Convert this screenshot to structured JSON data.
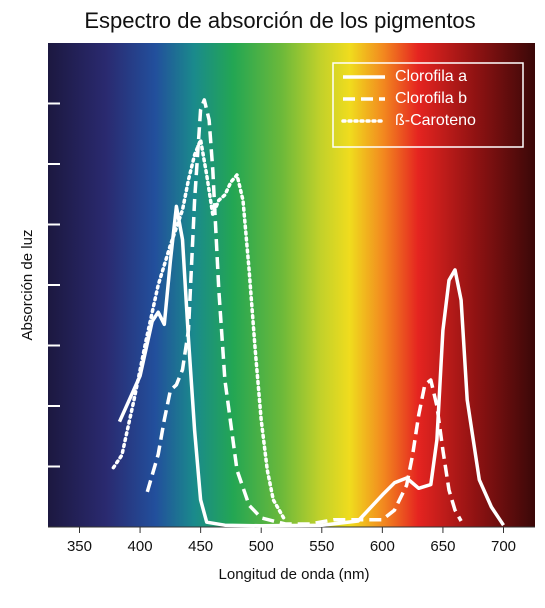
{
  "chart_data": {
    "type": "line",
    "title": "Espectro de absorción de los pigmentos",
    "x_label": "Longitud de onda (nm)",
    "y_label": "Absorción de luz",
    "xlim": [
      324,
      726
    ],
    "xticks": [
      350,
      400,
      450,
      500,
      550,
      600,
      650,
      700
    ],
    "ylim": [
      0,
      8
    ],
    "yticks": [
      1,
      2,
      3,
      4,
      5,
      6,
      7
    ],
    "legend": "upper right",
    "series": [
      {
        "name": "Clorofila a",
        "color": "#ffffff",
        "dash": "solid",
        "x": [
          383,
          400,
          410,
          415,
          420,
          425,
          430,
          435,
          440,
          445,
          450,
          455,
          470,
          500,
          550,
          580,
          600,
          610,
          620,
          630,
          640,
          645,
          650,
          655,
          660,
          665,
          670,
          680,
          690,
          700
        ],
        "values": [
          1.74,
          2.5,
          3.4,
          3.55,
          3.35,
          4.4,
          5.3,
          4.75,
          3.1,
          1.6,
          0.45,
          0.08,
          0.03,
          0.02,
          0.03,
          0.1,
          0.53,
          0.73,
          0.81,
          0.64,
          0.7,
          1.44,
          3.25,
          4.08,
          4.25,
          3.75,
          2.1,
          0.78,
          0.33,
          0.03
        ]
      },
      {
        "name": "Clorofila b",
        "color": "#ffffff",
        "dash": "dashed",
        "x": [
          406,
          415,
          420,
          425,
          430,
          435,
          440,
          445,
          450,
          453,
          457,
          460,
          465,
          470,
          480,
          490,
          500,
          520,
          540,
          560,
          580,
          600,
          610,
          620,
          625,
          630,
          635,
          640,
          645,
          650,
          655,
          660,
          665
        ],
        "values": [
          0.58,
          1.2,
          1.77,
          2.26,
          2.35,
          2.6,
          3.26,
          5.4,
          6.9,
          7.06,
          6.73,
          5.9,
          3.92,
          2.43,
          0.94,
          0.36,
          0.15,
          0.05,
          0.05,
          0.12,
          0.12,
          0.12,
          0.28,
          0.69,
          1.19,
          1.85,
          2.35,
          2.43,
          2.0,
          1.27,
          0.61,
          0.28,
          0.1
        ]
      },
      {
        "name": "ß-Caroteno",
        "color": "#ffffff",
        "dash": "dotted",
        "x": [
          378,
          385,
          395,
          405,
          415,
          425,
          435,
          440,
          445,
          450,
          455,
          460,
          465,
          470,
          475,
          480,
          485,
          490,
          495,
          500,
          505,
          510,
          520
        ],
        "values": [
          0.98,
          1.19,
          2.1,
          3.09,
          4.0,
          4.66,
          5.24,
          5.74,
          6.15,
          6.4,
          5.82,
          5.16,
          5.4,
          5.49,
          5.7,
          5.82,
          5.4,
          4.25,
          2.93,
          1.77,
          0.94,
          0.45,
          0.1
        ]
      }
    ]
  }
}
